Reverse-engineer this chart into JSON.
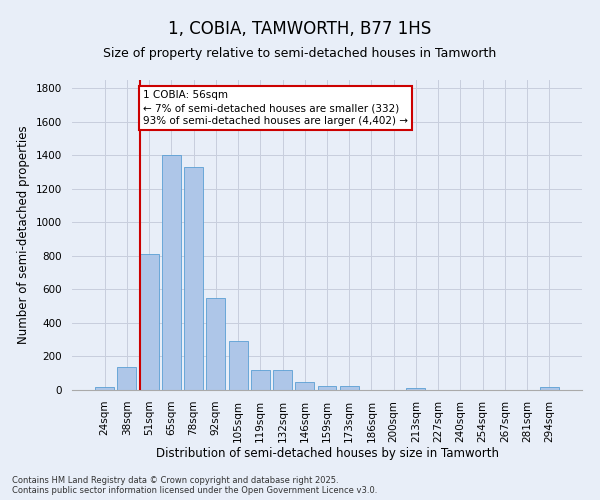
{
  "title": "1, COBIA, TAMWORTH, B77 1HS",
  "subtitle": "Size of property relative to semi-detached houses in Tamworth",
  "xlabel": "Distribution of semi-detached houses by size in Tamworth",
  "ylabel": "Number of semi-detached properties",
  "categories": [
    "24sqm",
    "38sqm",
    "51sqm",
    "65sqm",
    "78sqm",
    "92sqm",
    "105sqm",
    "119sqm",
    "132sqm",
    "146sqm",
    "159sqm",
    "173sqm",
    "186sqm",
    "200sqm",
    "213sqm",
    "227sqm",
    "240sqm",
    "254sqm",
    "267sqm",
    "281sqm",
    "294sqm"
  ],
  "values": [
    20,
    140,
    810,
    1400,
    1330,
    550,
    295,
    120,
    120,
    45,
    25,
    25,
    0,
    0,
    10,
    0,
    0,
    0,
    0,
    0,
    15
  ],
  "bar_color": "#aec6e8",
  "bar_edge_color": "#5a9fd4",
  "vline_index": 2,
  "annotation_text": "1 COBIA: 56sqm\n← 7% of semi-detached houses are smaller (332)\n93% of semi-detached houses are larger (4,402) →",
  "annotation_box_color": "#ffffff",
  "annotation_box_edge_color": "#cc0000",
  "vline_color": "#cc0000",
  "ylim": [
    0,
    1850
  ],
  "yticks": [
    0,
    200,
    400,
    600,
    800,
    1000,
    1200,
    1400,
    1600,
    1800
  ],
  "footer_text": "Contains HM Land Registry data © Crown copyright and database right 2025.\nContains public sector information licensed under the Open Government Licence v3.0.",
  "background_color": "#e8eef8",
  "grid_color": "#c8cedd",
  "title_fontsize": 12,
  "subtitle_fontsize": 9,
  "label_fontsize": 8.5,
  "tick_fontsize": 7.5,
  "footer_fontsize": 6,
  "annotation_fontsize": 7.5
}
